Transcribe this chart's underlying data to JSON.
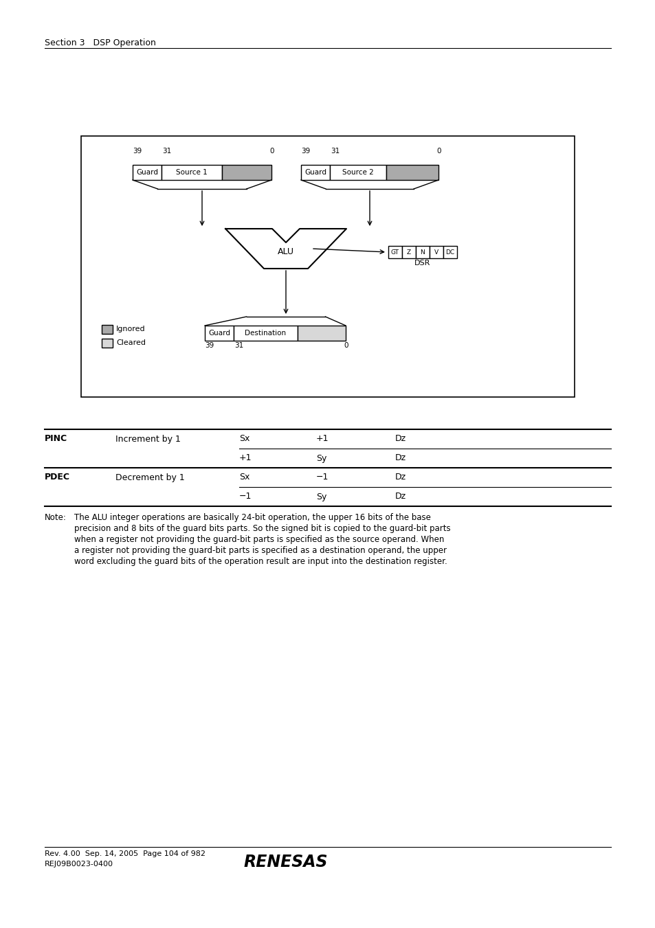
{
  "page_header": "Section 3   DSP Operation",
  "diagram": {
    "gray_fill": "#aaaaaa",
    "light_gray_fill": "#d8d8d8",
    "white_fill": "#ffffff",
    "source1_label": "Source 1",
    "source2_label": "Source 2",
    "guard_label": "Guard",
    "destination_label": "Destination",
    "alu_label": "ALU",
    "dsr_label": "DSR",
    "dsr_bits": [
      "GT",
      "Z",
      "N",
      "V",
      "DC"
    ],
    "ignored_label": "Ignored",
    "cleared_label": "Cleared"
  },
  "table": {
    "rows": [
      [
        "PINC",
        "Increment by 1",
        "Sx",
        "+1",
        "Dz"
      ],
      [
        "",
        "",
        "+1",
        "Sy",
        "Dz"
      ],
      [
        "PDEC",
        "Decrement by 1",
        "Sx",
        "−1",
        "Dz"
      ],
      [
        "",
        "",
        "−1",
        "Sy",
        "Dz"
      ]
    ]
  },
  "note_label": "Note:",
  "note_body": "The ALU integer operations are basically 24-bit operation, the upper 16 bits of the base\nprecision and 8 bits of the guard bits parts. So the signed bit is copied to the guard-bit parts\nwhen a register not providing the guard-bit parts is specified as the source operand. When\na register not providing the guard-bit parts is specified as a destination operand, the upper\nword excluding the guard bits of the operation result are input into the destination register.",
  "footer_left": "Rev. 4.00  Sep. 14, 2005  Page 104 of 982",
  "footer_left2": "REJ09B0023-0400",
  "footer_logo": "RENESAS"
}
